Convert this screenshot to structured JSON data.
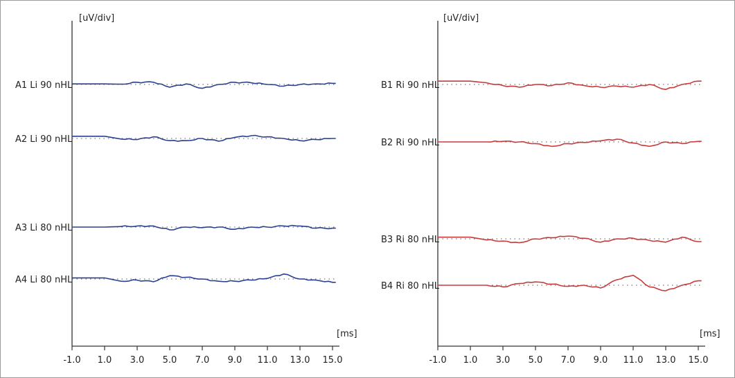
{
  "colors": {
    "left_trace": "#2b3f8f",
    "right_trace": "#c83a3a",
    "axis": "#333333",
    "baseline": "#555555"
  },
  "chart_data": [
    {
      "type": "line",
      "y_unit_label": "[uV/div]",
      "x_unit_label": "[ms]",
      "x_ticks": [
        "-1.0",
        "1.0",
        "3.0",
        "5.0",
        "7.0",
        "9.0",
        "11.0",
        "13.0",
        "15.0"
      ],
      "xlim": [
        -1.0,
        16.0
      ],
      "series": [
        {
          "name": "A1 Li 90 nHL",
          "x": [
            -1.0,
            1.0,
            2.0,
            3.0,
            4.0,
            5.0,
            6.0,
            7.0,
            8.0,
            9.0,
            10.0,
            11.0,
            12.0,
            13.0,
            14.0,
            15.0
          ],
          "values": [
            0.1,
            0.1,
            0.05,
            0.4,
            0.4,
            -0.5,
            0.1,
            -0.7,
            0.0,
            0.4,
            0.3,
            0.0,
            -0.3,
            0.0,
            0.1,
            0.2
          ]
        },
        {
          "name": "A2 Li 90 nHL",
          "x": [
            -1.0,
            1.0,
            2.0,
            3.0,
            4.0,
            5.0,
            6.0,
            7.0,
            8.0,
            9.0,
            10.0,
            11.0,
            12.0,
            13.0,
            14.0,
            15.0
          ],
          "values": [
            0.4,
            0.4,
            -0.1,
            -0.2,
            0.3,
            -0.4,
            -0.4,
            0.0,
            -0.5,
            0.2,
            0.5,
            0.3,
            0.0,
            -0.4,
            -0.2,
            0.0
          ]
        },
        {
          "name": "A3 Li 80 nHL",
          "x": [
            -1.0,
            1.0,
            2.0,
            3.0,
            4.0,
            5.0,
            6.0,
            7.0,
            8.0,
            9.0,
            10.0,
            11.0,
            12.0,
            13.0,
            14.0,
            15.0
          ],
          "values": [
            0.0,
            0.0,
            0.1,
            0.2,
            0.2,
            -0.5,
            0.0,
            -0.1,
            0.0,
            -0.4,
            0.0,
            0.0,
            0.2,
            0.2,
            -0.2,
            -0.2
          ]
        },
        {
          "name": "A4 Li 80 nHL",
          "x": [
            -1.0,
            1.0,
            2.0,
            3.0,
            4.0,
            5.0,
            6.0,
            7.0,
            8.0,
            9.0,
            10.0,
            11.0,
            12.0,
            13.0,
            14.0,
            15.0
          ],
          "values": [
            0.2,
            0.2,
            -0.4,
            -0.2,
            -0.5,
            0.6,
            0.3,
            0.0,
            -0.4,
            -0.4,
            -0.2,
            0.1,
            0.9,
            0.0,
            -0.2,
            -0.6
          ]
        }
      ]
    },
    {
      "type": "line",
      "y_unit_label": "[uV/div]",
      "x_unit_label": "[ms]",
      "x_ticks": [
        "-1.0",
        "1.0",
        "3.0",
        "5.0",
        "7.0",
        "9.0",
        "11.0",
        "13.0",
        "15.0"
      ],
      "xlim": [
        -1.0,
        16.0
      ],
      "series": [
        {
          "name": "B1 Ri 90 nHL",
          "x": [
            -1.0,
            1.0,
            2.0,
            3.0,
            4.0,
            5.0,
            6.0,
            7.0,
            8.0,
            9.0,
            10.0,
            11.0,
            12.0,
            13.0,
            14.0,
            15.0
          ],
          "values": [
            0.6,
            0.6,
            0.3,
            -0.2,
            -0.5,
            0.0,
            -0.2,
            0.3,
            -0.2,
            -0.5,
            -0.3,
            -0.5,
            0.0,
            -0.9,
            0.0,
            0.6
          ]
        },
        {
          "name": "B2 Ri 90 nHL",
          "x": [
            -1.0,
            1.0,
            2.0,
            3.0,
            4.0,
            5.0,
            6.0,
            7.0,
            8.0,
            9.0,
            10.0,
            11.0,
            12.0,
            13.0,
            14.0,
            15.0
          ],
          "values": [
            0.0,
            0.0,
            0.0,
            0.1,
            0.0,
            -0.3,
            -0.8,
            -0.3,
            -0.1,
            0.2,
            0.5,
            -0.2,
            -0.8,
            0.0,
            -0.3,
            0.1
          ]
        },
        {
          "name": "B3 Ri 80 nHL",
          "x": [
            -1.0,
            1.0,
            2.0,
            3.0,
            4.0,
            5.0,
            6.0,
            7.0,
            8.0,
            9.0,
            10.0,
            11.0,
            12.0,
            13.0,
            14.0,
            15.0
          ],
          "values": [
            0.3,
            0.3,
            -0.2,
            -0.4,
            -0.7,
            0.0,
            0.2,
            0.5,
            0.1,
            -0.6,
            0.0,
            0.1,
            -0.3,
            -0.6,
            0.3,
            -0.5
          ]
        },
        {
          "name": "B4 Ri 80 nHL",
          "x": [
            -1.0,
            1.0,
            2.0,
            3.0,
            4.0,
            5.0,
            6.0,
            7.0,
            8.0,
            9.0,
            10.0,
            11.0,
            12.0,
            13.0,
            14.0,
            15.0
          ],
          "values": [
            0.0,
            0.0,
            0.0,
            -0.3,
            0.3,
            0.6,
            0.2,
            -0.2,
            0.0,
            -0.5,
            1.0,
            1.8,
            -0.3,
            -1.0,
            0.0,
            0.8
          ]
        }
      ]
    }
  ]
}
